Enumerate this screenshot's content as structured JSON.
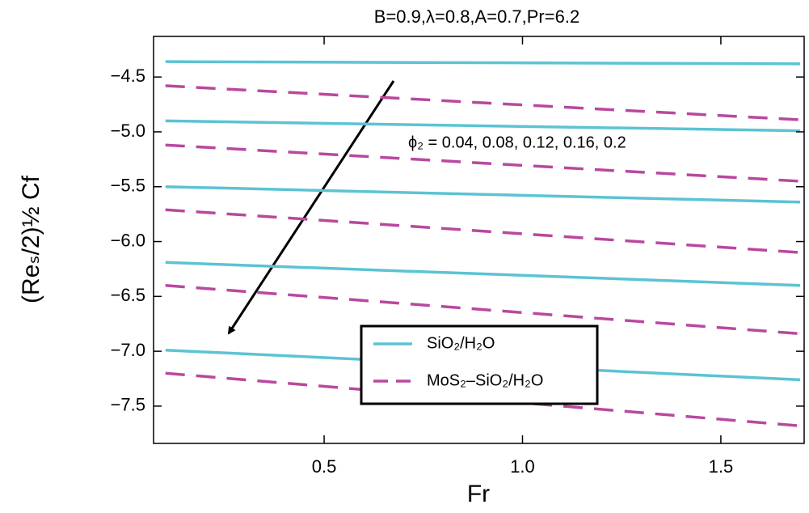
{
  "chart_data": {
    "type": "line",
    "title": "B=0.9,λ=0.8,A=0.7,Pr=6.2",
    "xlabel": "Fr",
    "ylabel": "(Reₛ/2)½ Cf",
    "annotation": "ϕ₂ = 0.04, 0.08, 0.12, 0.16, 0.2",
    "x": [
      0.1,
      1.7
    ],
    "xlim": [
      0.07,
      1.71
    ],
    "ylim": [
      -7.84,
      -4.13
    ],
    "xticks": [
      0.5,
      {
        "value": 1,
        "label": "1.0"
      },
      1.5
    ],
    "yticks": [
      {
        "value": -4.5,
        "label": "−4.5"
      },
      {
        "value": -5,
        "label": "−5.0"
      },
      {
        "value": -5.5,
        "label": "−5.5"
      },
      {
        "value": -6,
        "label": "−6.0"
      },
      {
        "value": -6.5,
        "label": "−6.5"
      },
      {
        "value": -7,
        "label": "−7.0"
      },
      {
        "value": -7.5,
        "label": "−7.5"
      }
    ],
    "series": [
      {
        "name": "SiO₂/H₂O",
        "color": "#5bc3d4",
        "dashed": false,
        "curves": [
          [
            -4.36,
            -4.38
          ],
          [
            -4.9,
            -4.99
          ],
          [
            -5.5,
            -5.64
          ],
          [
            -6.19,
            -6.4
          ],
          [
            -6.99,
            -7.26
          ]
        ]
      },
      {
        "name": "MoS₂–SiO₂/H₂O",
        "color": "#b9489f",
        "dashed": true,
        "curves": [
          [
            -4.58,
            -4.89
          ],
          [
            -5.12,
            -5.45
          ],
          [
            -5.71,
            -6.1
          ],
          [
            -6.4,
            -6.84
          ],
          [
            -7.2,
            -7.68
          ]
        ]
      }
    ]
  }
}
